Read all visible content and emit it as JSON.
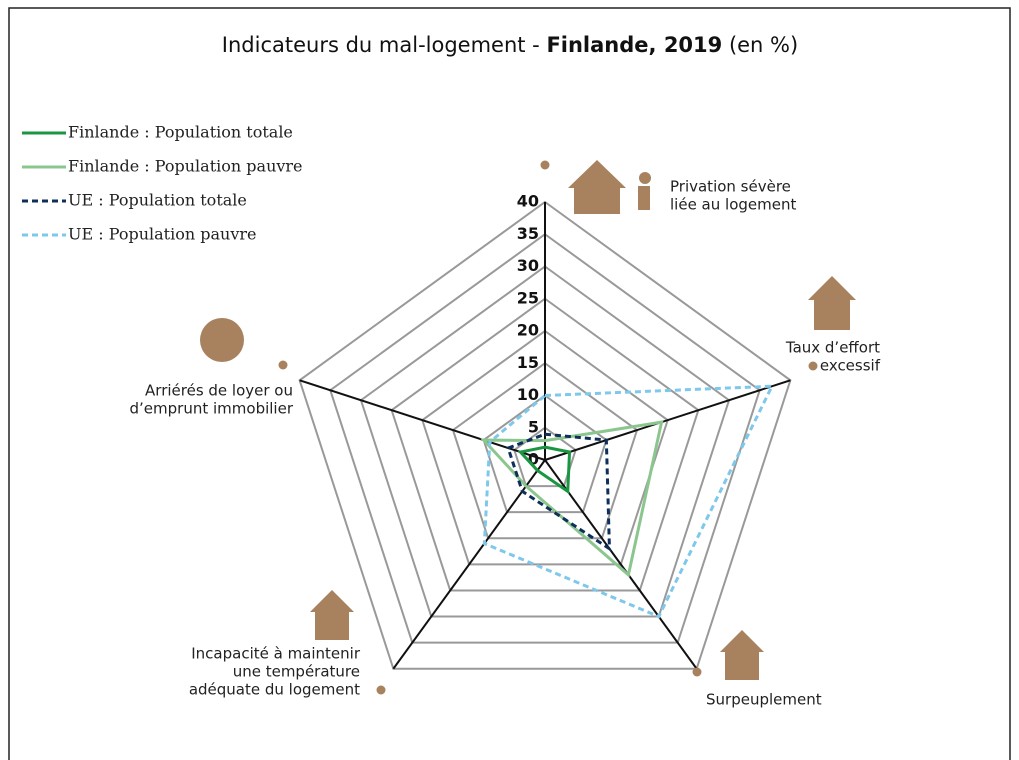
{
  "chart_data": {
    "type": "radar",
    "title_parts": [
      "Indicateurs du mal-logement - ",
      "Finlande, 2019",
      " (en %)"
    ],
    "categories": [
      [
        "Privation sévère",
        "liée au logement"
      ],
      [
        "Taux d’effort",
        "excessif"
      ],
      [
        "Surpeuplement"
      ],
      [
        "Incapacité à maintenir",
        "une température",
        "adéquate du logement"
      ],
      [
        "Arriérés de loyer ou",
        "d’emprunt immobilier"
      ]
    ],
    "series": [
      {
        "name": "Finlande : Population totale",
        "color": "#1a9641",
        "dash": false,
        "values": [
          2,
          4,
          6,
          2,
          4
        ]
      },
      {
        "name": "Finlande : Population pauvre",
        "color": "#8cc68f",
        "dash": false,
        "values": [
          3,
          19,
          22,
          5,
          10
        ]
      },
      {
        "name": "UE : Population totale",
        "color": "#0d2f5a",
        "dash": true,
        "values": [
          4,
          10,
          17,
          6,
          6
        ]
      },
      {
        "name": "UE : Population pauvre",
        "color": "#7ec8ec",
        "dash": true,
        "values": [
          10,
          37,
          30,
          16,
          9
        ]
      }
    ],
    "ylim": [
      0,
      40
    ],
    "yticks": [
      0,
      5,
      10,
      15,
      20,
      25,
      30,
      35,
      40
    ],
    "grid": true
  }
}
